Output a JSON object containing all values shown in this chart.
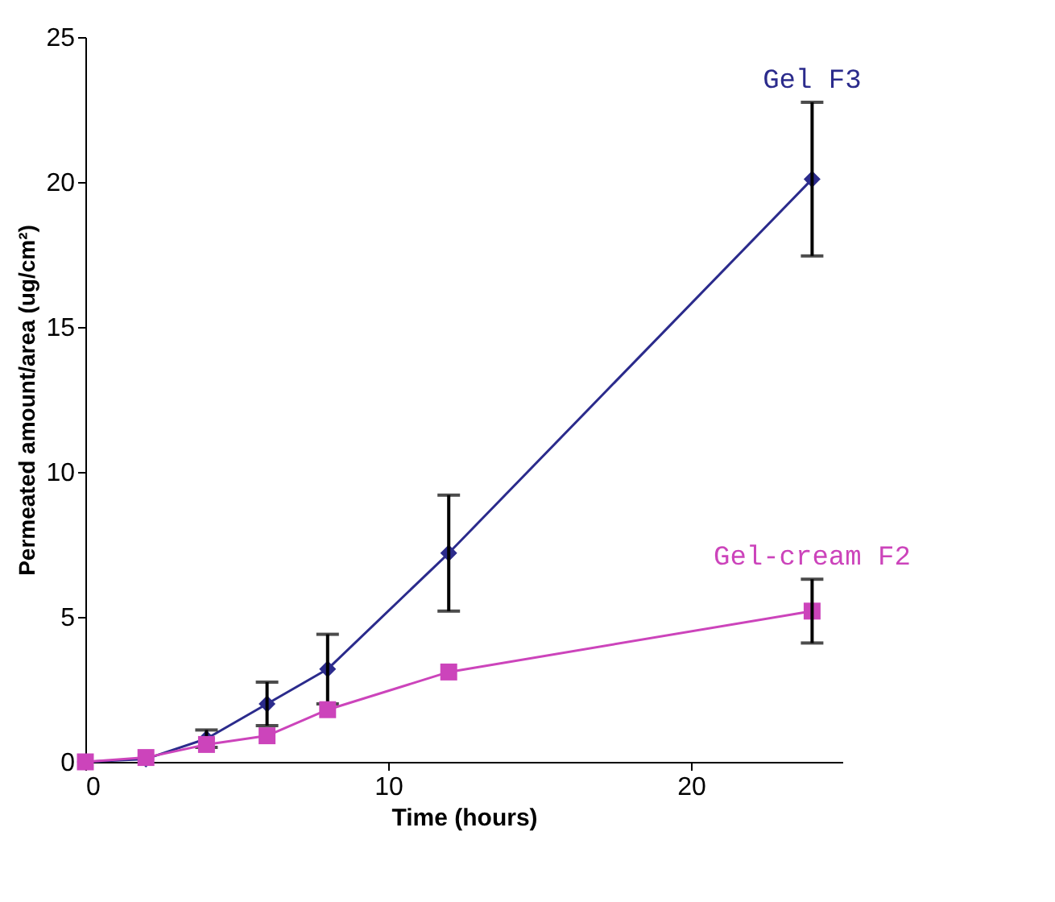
{
  "chart_data": {
    "type": "line",
    "xlabel": "Time (hours)",
    "ylabel": "Permeated amount/area (ug/cm²)",
    "x": [
      0,
      2,
      4,
      6,
      8,
      12,
      24
    ],
    "series": [
      {
        "name": "Gel F3",
        "color": "#2b2b8c",
        "marker": "diamond",
        "values": [
          0,
          0.1,
          0.8,
          2.0,
          3.2,
          7.2,
          20.1
        ],
        "errors": [
          null,
          null,
          0.3,
          0.75,
          1.2,
          2.0,
          2.65
        ]
      },
      {
        "name": "Gel-cream F2",
        "color": "#cc44bb",
        "marker": "square",
        "values": [
          0,
          0.15,
          0.6,
          0.9,
          1.8,
          3.1,
          5.2
        ],
        "errors": [
          null,
          null,
          null,
          null,
          null,
          null,
          1.1
        ]
      }
    ],
    "xlim": [
      0,
      25
    ],
    "xticks": [
      0,
      10,
      20
    ],
    "ylim": [
      0,
      25
    ],
    "yticks": [
      0,
      5,
      10,
      15,
      20,
      25
    ],
    "grid": false,
    "legend": false
  }
}
